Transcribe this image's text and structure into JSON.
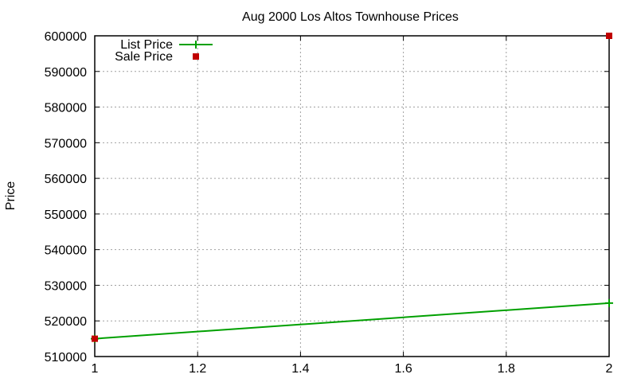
{
  "chart_data": {
    "type": "line",
    "title": "Aug 2000 Los Altos Townhouse Prices",
    "xlabel": "",
    "ylabel": "Price",
    "xlim": [
      1,
      2
    ],
    "ylim": [
      510000,
      600000
    ],
    "x_ticks": [
      "1",
      "1.2",
      "1.4",
      "1.6",
      "1.8",
      "2"
    ],
    "y_ticks": [
      "510000",
      "520000",
      "530000",
      "540000",
      "550000",
      "560000",
      "570000",
      "580000",
      "590000",
      "600000"
    ],
    "grid": true,
    "legend_position": "top-left",
    "series": [
      {
        "name": "List Price",
        "style": "linespoints",
        "color": "#00a000",
        "x": [
          1,
          2
        ],
        "values": [
          515000,
          525000
        ]
      },
      {
        "name": "Sale Price",
        "style": "points",
        "color": "#c00000",
        "x": [
          1,
          2
        ],
        "values": [
          515000,
          600000
        ]
      }
    ]
  }
}
